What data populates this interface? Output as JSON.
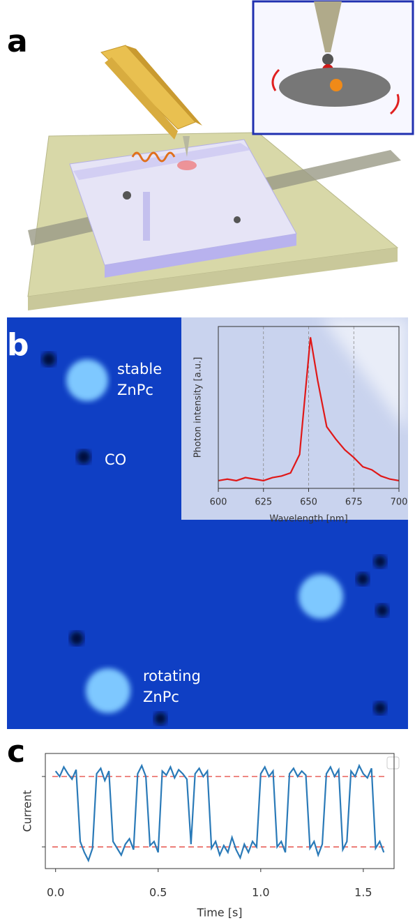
{
  "panel_labels": [
    "a",
    "b",
    "c"
  ],
  "annotations": [
    [
      "stable",
      "ZnPc"
    ],
    [
      "CO"
    ],
    [
      "rotating",
      "ZnPc"
    ]
  ],
  "chart_data": [
    {
      "type": "line",
      "x_label": "Wavelength [nm]",
      "y_label": "Photon intensity [a.u.]",
      "x": [
        600,
        605,
        610,
        615,
        620,
        625,
        630,
        635,
        640,
        645,
        648,
        651,
        655,
        660,
        665,
        670,
        675,
        680,
        685,
        690,
        695,
        700
      ],
      "series": [
        {
          "color": "#e01818",
          "values": [
            0.05,
            0.06,
            0.05,
            0.07,
            0.06,
            0.05,
            0.07,
            0.08,
            0.1,
            0.22,
            0.6,
            0.98,
            0.7,
            0.4,
            0.32,
            0.25,
            0.2,
            0.14,
            0.12,
            0.08,
            0.06,
            0.05
          ]
        }
      ],
      "xlim": [
        600,
        700
      ],
      "ylim": [
        0,
        1.05
      ],
      "xticks": [
        600,
        625,
        650,
        675,
        700
      ],
      "grid": true
    },
    {
      "type": "line",
      "x_label": "Time [s]",
      "y_label": "Current",
      "x": [
        0,
        0.02,
        0.04,
        0.06,
        0.08,
        0.1,
        0.12,
        0.14,
        0.16,
        0.18,
        0.2,
        0.22,
        0.24,
        0.26,
        0.28,
        0.3,
        0.32,
        0.34,
        0.36,
        0.38,
        0.4,
        0.42,
        0.44,
        0.46,
        0.48,
        0.5,
        0.52,
        0.54,
        0.56,
        0.58,
        0.6,
        0.62,
        0.64,
        0.66,
        0.68,
        0.7,
        0.72,
        0.74,
        0.76,
        0.78,
        0.8,
        0.82,
        0.84,
        0.86,
        0.88,
        0.9,
        0.92,
        0.94,
        0.96,
        0.98,
        1.0,
        1.02,
        1.04,
        1.06,
        1.08,
        1.1,
        1.12,
        1.14,
        1.16,
        1.18,
        1.2,
        1.22,
        1.24,
        1.26,
        1.28,
        1.3,
        1.32,
        1.34,
        1.36,
        1.38,
        1.4,
        1.42,
        1.44,
        1.46,
        1.48,
        1.5,
        1.52,
        1.54,
        1.56,
        1.58,
        1.6
      ],
      "series": [
        {
          "color": "#2a7ab8",
          "values": [
            0.82,
            0.78,
            0.85,
            0.8,
            0.76,
            0.83,
            0.3,
            0.22,
            0.16,
            0.25,
            0.8,
            0.84,
            0.75,
            0.82,
            0.3,
            0.25,
            0.2,
            0.28,
            0.32,
            0.24,
            0.8,
            0.86,
            0.78,
            0.27,
            0.3,
            0.22,
            0.82,
            0.79,
            0.85,
            0.77,
            0.83,
            0.8,
            0.76,
            0.28,
            0.8,
            0.84,
            0.78,
            0.82,
            0.25,
            0.3,
            0.2,
            0.27,
            0.22,
            0.33,
            0.24,
            0.18,
            0.28,
            0.22,
            0.3,
            0.26,
            0.8,
            0.85,
            0.78,
            0.82,
            0.26,
            0.3,
            0.22,
            0.8,
            0.84,
            0.78,
            0.82,
            0.79,
            0.25,
            0.3,
            0.2,
            0.28,
            0.8,
            0.85,
            0.78,
            0.83,
            0.24,
            0.3,
            0.82,
            0.78,
            0.86,
            0.8,
            0.77,
            0.84,
            0.25,
            0.3,
            0.22
          ]
        }
      ],
      "hlines": [
        {
          "value": 0.78,
          "color": "#e8605a"
        },
        {
          "value": 0.26,
          "color": "#e8605a"
        }
      ],
      "xlim": [
        -0.05,
        1.65
      ],
      "ylim": [
        0.1,
        0.95
      ],
      "xticks": [
        {
          "value": 0,
          "label": "0.0"
        },
        {
          "value": 0.5,
          "label": "0.5"
        },
        {
          "value": 1,
          "label": "1.0"
        },
        {
          "value": 1.5,
          "label": "1.5"
        }
      ],
      "yticks": [
        0.26,
        0.78
      ],
      "grid": false
    }
  ]
}
